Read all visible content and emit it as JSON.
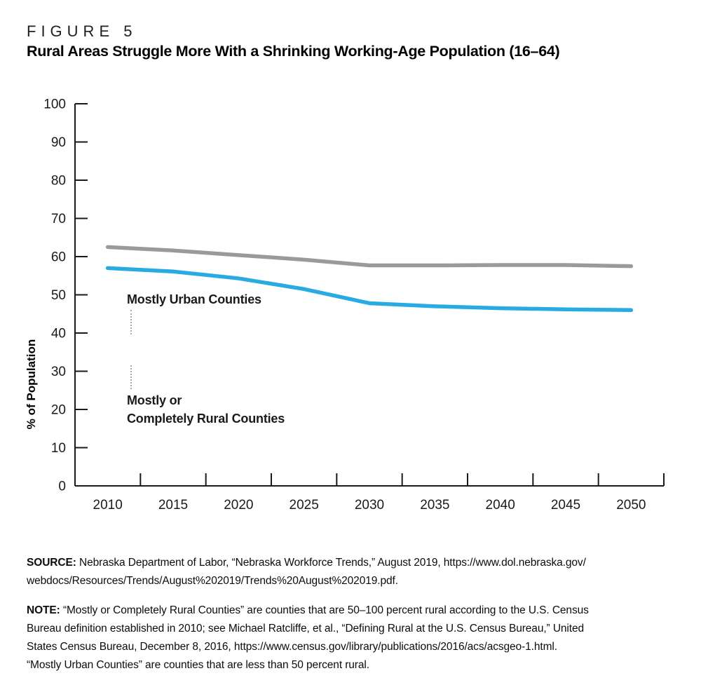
{
  "figure_label": "FIGURE 5",
  "title": "Rural Areas Struggle More With a Shrinking Working-Age Population (16–64)",
  "colors": {
    "urban_line": "#9a9a9a",
    "rural_line": "#29abe2",
    "axis": "#1a1a1a",
    "leader_dots": "#a9a9a9"
  },
  "chart_data": {
    "type": "line",
    "x": [
      "2010",
      "2015",
      "2020",
      "2025",
      "2030",
      "2035",
      "2040",
      "2045",
      "2050"
    ],
    "series": [
      {
        "id": "urban",
        "name": "Mostly Urban Counties",
        "color": "#9a9a9a",
        "values": [
          62.5,
          61.6,
          60.4,
          59.2,
          57.7,
          57.7,
          57.8,
          57.8,
          57.5
        ]
      },
      {
        "id": "rural",
        "name": "Mostly or Completely Rural Counties",
        "color": "#29abe2",
        "values": [
          57.0,
          56.1,
          54.3,
          51.5,
          47.8,
          47.0,
          46.5,
          46.2,
          46.0
        ]
      }
    ],
    "title": "Rural Areas Struggle More With a Shrinking Working-Age Population (16–64)",
    "xlabel": "",
    "ylabel": "% of Population",
    "ylim": [
      0,
      100
    ],
    "ytick_step": 10,
    "grid": false,
    "legend": "inline-annotations-with-dotted-leaders"
  },
  "annotations": {
    "urban": {
      "lines": [
        "Mostly Urban Counties"
      ]
    },
    "rural": {
      "lines": [
        "Mostly or",
        "Completely Rural Counties"
      ]
    }
  },
  "source": {
    "label": "SOURCE:",
    "lines": [
      "Nebraska Department of Labor, “Nebraska Workforce Trends,” August 2019, https://www.dol.nebraska.gov/",
      "webdocs/Resources/Trends/August%202019/Trends%20August%202019.pdf."
    ]
  },
  "note": {
    "label": "NOTE:",
    "lines": [
      "“Mostly or Completely Rural Counties” are counties that are 50–100 percent rural according to the U.S. Census",
      "Bureau definition established in 2010; see Michael Ratcliffe, et al., “Defining Rural at the U.S. Census Bureau,” United",
      "States Census Bureau, December 8, 2016, https://www.census.gov/library/publications/2016/acs/acsgeo-1.html.",
      "“Mostly Urban Counties” are counties that are less than 50 percent rural."
    ]
  }
}
